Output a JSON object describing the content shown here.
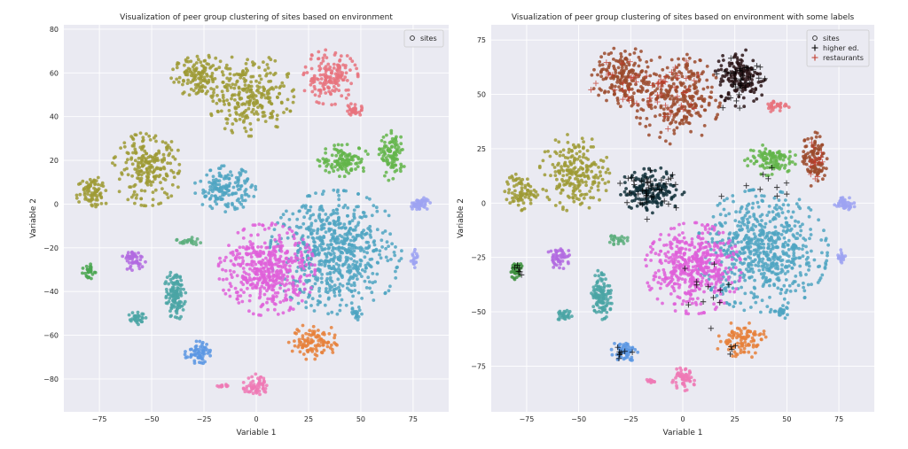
{
  "chart_data": [
    {
      "type": "scatter",
      "title": "Visualization of peer group clustering of sites based on environment",
      "xlabel": "Variable 1",
      "ylabel": "Variable 2",
      "xlim": [
        -92,
        92
      ],
      "ylim": [
        -95,
        82
      ],
      "xticks": [
        -75,
        -50,
        -25,
        0,
        25,
        50,
        75
      ],
      "yticks": [
        -80,
        -60,
        -40,
        -20,
        0,
        20,
        40,
        60,
        80
      ],
      "grid": true,
      "legend": {
        "placement": "top-right",
        "entries": [
          {
            "label": "sites",
            "marker": "o"
          }
        ]
      },
      "clusters": [
        {
          "name": "olive-top",
          "color": "#9d9a34",
          "cx": -27,
          "cy": 58,
          "rx": 13,
          "ry": 10,
          "n": 70
        },
        {
          "name": "olive-top-large",
          "color": "#9d9a34",
          "cx": -3,
          "cy": 50,
          "rx": 20,
          "ry": 18,
          "n": 130
        },
        {
          "name": "red-top",
          "color": "#e8727c",
          "cx": 35,
          "cy": 58,
          "rx": 13,
          "ry": 12,
          "n": 80
        },
        {
          "name": "red-small",
          "color": "#e8727c",
          "cx": 47,
          "cy": 43,
          "rx": 5,
          "ry": 3,
          "n": 15
        },
        {
          "name": "olive-left",
          "color": "#9d9a34",
          "cx": -52,
          "cy": 16,
          "rx": 16,
          "ry": 16,
          "n": 110
        },
        {
          "name": "olive-far-left",
          "color": "#9d9a34",
          "cx": -78,
          "cy": 6,
          "rx": 8,
          "ry": 8,
          "n": 40
        },
        {
          "name": "green-right",
          "color": "#63b54a",
          "cx": 42,
          "cy": 20,
          "rx": 12,
          "ry": 7,
          "n": 60
        },
        {
          "name": "green-far-right",
          "color": "#63b54a",
          "cx": 65,
          "cy": 22,
          "rx": 6,
          "ry": 11,
          "n": 50
        },
        {
          "name": "teal-mid",
          "color": "#4fa4c2",
          "cx": -15,
          "cy": 7,
          "rx": 14,
          "ry": 10,
          "n": 80
        },
        {
          "name": "teal-main",
          "color": "#4fa4c2",
          "cx": 38,
          "cy": -22,
          "rx": 30,
          "ry": 27,
          "n": 320
        },
        {
          "name": "magenta-main",
          "color": "#df5fd9",
          "cx": 5,
          "cy": -30,
          "rx": 22,
          "ry": 20,
          "n": 230
        },
        {
          "name": "lavender-right",
          "color": "#9ea3f2",
          "cx": 78,
          "cy": 0,
          "rx": 5,
          "ry": 3,
          "n": 25
        },
        {
          "name": "lavender-small",
          "color": "#9ea3f2",
          "cx": 76,
          "cy": -25,
          "rx": 2,
          "ry": 4,
          "n": 10
        },
        {
          "name": "purple-left",
          "color": "#b26ae0",
          "cx": -59,
          "cy": -25,
          "rx": 6,
          "ry": 5,
          "n": 25
        },
        {
          "name": "green-small-left",
          "color": "#4aa650",
          "cx": -80,
          "cy": -31,
          "rx": 3,
          "ry": 4,
          "n": 15
        },
        {
          "name": "teal-left-col",
          "color": "#4aa5a5",
          "cx": -39,
          "cy": -42,
          "rx": 5,
          "ry": 11,
          "n": 60
        },
        {
          "name": "teal-small",
          "color": "#4aa5a5",
          "cx": -57,
          "cy": -52,
          "rx": 4,
          "ry": 3,
          "n": 15
        },
        {
          "name": "blue-bottom",
          "color": "#5a97e3",
          "cx": -28,
          "cy": -68,
          "rx": 6,
          "ry": 5,
          "n": 30
        },
        {
          "name": "orange-bottom",
          "color": "#e6803a",
          "cx": 28,
          "cy": -63,
          "rx": 12,
          "ry": 8,
          "n": 50
        },
        {
          "name": "pink-bottom",
          "color": "#ee79b5",
          "cx": 0,
          "cy": -83,
          "rx": 6,
          "ry": 5,
          "n": 30
        },
        {
          "name": "pink-tiny",
          "color": "#ee79b5",
          "cx": -16,
          "cy": -83,
          "rx": 3,
          "ry": 1,
          "n": 6
        },
        {
          "name": "green-strip",
          "color": "#5cae7c",
          "cx": -32,
          "cy": -17,
          "rx": 6,
          "ry": 2,
          "n": 12
        },
        {
          "name": "teal-small-right",
          "color": "#4fa4c2",
          "cx": 48,
          "cy": -50,
          "rx": 3,
          "ry": 3,
          "n": 10
        }
      ]
    },
    {
      "type": "scatter",
      "title": "Visualization of peer group clustering of sites based on environment with some labels",
      "xlabel": "Variable 1",
      "ylabel": "Variable 2",
      "xlim": [
        -92,
        92
      ],
      "ylim": [
        -96,
        82
      ],
      "xticks": [
        -75,
        -50,
        -25,
        0,
        25,
        50,
        75
      ],
      "yticks": [
        -75,
        -50,
        -25,
        0,
        25,
        50,
        75
      ],
      "grid": true,
      "legend": {
        "placement": "top-right",
        "entries": [
          {
            "label": "sites",
            "marker": "o"
          },
          {
            "label": "higher ed.",
            "marker": "+",
            "color": "#000000"
          },
          {
            "label": "restaurants",
            "marker": "+",
            "color": "#c0392b"
          }
        ]
      },
      "clusters": [
        {
          "name": "brown-top",
          "color": "#9b4a2c",
          "cx": -28,
          "cy": 58,
          "rx": 15,
          "ry": 13,
          "n": 90
        },
        {
          "name": "brown-top-large",
          "color": "#9b4a2c",
          "cx": -3,
          "cy": 48,
          "rx": 20,
          "ry": 20,
          "n": 140
        },
        {
          "name": "black-top",
          "color": "#2b1518",
          "cx": 28,
          "cy": 58,
          "rx": 12,
          "ry": 13,
          "n": 80
        },
        {
          "name": "red-small",
          "color": "#e8727c",
          "cx": 45,
          "cy": 45,
          "rx": 6,
          "ry": 3,
          "n": 15
        },
        {
          "name": "olive-left",
          "color": "#9d9a34",
          "cx": -52,
          "cy": 14,
          "rx": 16,
          "ry": 17,
          "n": 110
        },
        {
          "name": "olive-far-left",
          "color": "#9d9a34",
          "cx": -78,
          "cy": 5,
          "rx": 8,
          "ry": 8,
          "n": 40
        },
        {
          "name": "green-right",
          "color": "#63b54a",
          "cx": 42,
          "cy": 20,
          "rx": 12,
          "ry": 7,
          "n": 55
        },
        {
          "name": "brown-far-right",
          "color": "#9b4a2c",
          "cx": 63,
          "cy": 20,
          "rx": 6,
          "ry": 12,
          "n": 50
        },
        {
          "name": "black-teal-mid",
          "color": "#12303a",
          "cx": -15,
          "cy": 6,
          "rx": 15,
          "ry": 10,
          "n": 80
        },
        {
          "name": "teal-main",
          "color": "#4fa4c2",
          "cx": 38,
          "cy": -22,
          "rx": 30,
          "ry": 27,
          "n": 320
        },
        {
          "name": "magenta-main",
          "color": "#df5fd9",
          "cx": 5,
          "cy": -30,
          "rx": 22,
          "ry": 20,
          "n": 230
        },
        {
          "name": "lavender-right",
          "color": "#9ea3f2",
          "cx": 78,
          "cy": 0,
          "rx": 5,
          "ry": 3,
          "n": 25
        },
        {
          "name": "lavender-small",
          "color": "#9ea3f2",
          "cx": 76,
          "cy": -25,
          "rx": 2,
          "ry": 4,
          "n": 10
        },
        {
          "name": "purple-left",
          "color": "#b26ae0",
          "cx": -59,
          "cy": -25,
          "rx": 6,
          "ry": 5,
          "n": 25
        },
        {
          "name": "green-small-left",
          "color": "#3c8f3c",
          "cx": -80,
          "cy": -31,
          "rx": 3,
          "ry": 4,
          "n": 15
        },
        {
          "name": "teal-left-col",
          "color": "#4aa5a5",
          "cx": -39,
          "cy": -42,
          "rx": 5,
          "ry": 11,
          "n": 60
        },
        {
          "name": "teal-small",
          "color": "#4aa5a5",
          "cx": -57,
          "cy": -52,
          "rx": 4,
          "ry": 3,
          "n": 15
        },
        {
          "name": "blue-bottom",
          "color": "#5a97e3",
          "cx": -28,
          "cy": -68,
          "rx": 6,
          "ry": 5,
          "n": 30
        },
        {
          "name": "orange-bottom",
          "color": "#e6803a",
          "cx": 28,
          "cy": -63,
          "rx": 12,
          "ry": 8,
          "n": 50
        },
        {
          "name": "pink-bottom",
          "color": "#ee79b5",
          "cx": 0,
          "cy": -81,
          "rx": 6,
          "ry": 5,
          "n": 30
        },
        {
          "name": "pink-tiny",
          "color": "#ee79b5",
          "cx": -16,
          "cy": -82,
          "rx": 3,
          "ry": 1,
          "n": 6
        },
        {
          "name": "green-strip",
          "color": "#5cae7c",
          "cx": -32,
          "cy": -17,
          "rx": 6,
          "ry": 2,
          "n": 12
        },
        {
          "name": "teal-small-right",
          "color": "#4fa4c2",
          "cx": 48,
          "cy": -50,
          "rx": 3,
          "ry": 3,
          "n": 10
        }
      ],
      "label_points": [
        {
          "name": "higher-ed",
          "color": "#000000",
          "cx": 28,
          "cy": 58,
          "rx": 12,
          "ry": 13,
          "n": 35
        },
        {
          "name": "higher-ed",
          "color": "#000000",
          "cx": -15,
          "cy": 6,
          "rx": 14,
          "ry": 9,
          "n": 40
        },
        {
          "name": "higher-ed",
          "color": "#000000",
          "cx": -79,
          "cy": -31,
          "rx": 3,
          "ry": 3,
          "n": 6
        },
        {
          "name": "higher-ed",
          "color": "#000000",
          "cx": -29,
          "cy": -69,
          "rx": 5,
          "ry": 3,
          "n": 8
        },
        {
          "name": "higher-ed",
          "color": "#000000",
          "cx": 10,
          "cy": -40,
          "rx": 20,
          "ry": 15,
          "n": 12
        },
        {
          "name": "higher-ed",
          "color": "#000000",
          "cx": 40,
          "cy": 15,
          "rx": 20,
          "ry": 15,
          "n": 10
        },
        {
          "name": "higher-ed",
          "color": "#000000",
          "cx": 25,
          "cy": -68,
          "rx": 5,
          "ry": 4,
          "n": 4
        },
        {
          "name": "restaurants",
          "color": "#c0392b",
          "cx": -5,
          "cy": 50,
          "rx": 22,
          "ry": 20,
          "n": 40
        },
        {
          "name": "restaurants",
          "color": "#c0392b",
          "cx": -28,
          "cy": 58,
          "rx": 14,
          "ry": 12,
          "n": 20
        },
        {
          "name": "restaurants",
          "color": "#c0392b",
          "cx": 63,
          "cy": 20,
          "rx": 6,
          "ry": 12,
          "n": 15
        }
      ]
    }
  ],
  "colors": {
    "plot_bg": "#eaeaf2",
    "grid": "#ffffff",
    "text": "#262626"
  }
}
